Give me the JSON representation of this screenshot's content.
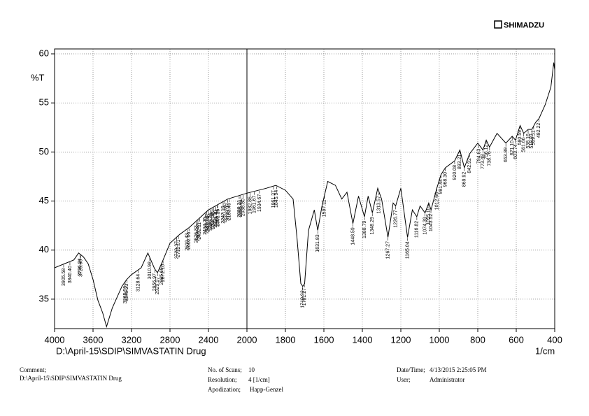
{
  "chart_data": {
    "type": "line",
    "brand": "SHIMADZU",
    "ylabel": "%T",
    "xlabel": "1/cm",
    "sample_path": "D:\\April-15\\SDIP\\SIMVASTATIN Drug",
    "xlim": [
      4000,
      400
    ],
    "x_scale_break": 2000,
    "xticks": [
      4000,
      3600,
      3200,
      2800,
      2400,
      2000,
      1800,
      1600,
      1400,
      1200,
      1000,
      800,
      600,
      400
    ],
    "ylim": [
      32,
      60.5
    ],
    "yticks": [
      35,
      40,
      45,
      50,
      55,
      60
    ],
    "grid": true,
    "color": "#000000",
    "x": [
      4000,
      3900,
      3800,
      3750,
      3700,
      3650,
      3600,
      3550,
      3500,
      3460,
      3400,
      3300,
      3250,
      3200,
      3100,
      3030,
      2960,
      2930,
      2880,
      2800,
      2700,
      2600,
      2400,
      2200,
      2000,
      1900,
      1850,
      1800,
      1760,
      1740,
      1720,
      1710,
      1700,
      1680,
      1650,
      1632,
      1610,
      1580,
      1540,
      1507,
      1480,
      1449,
      1420,
      1389,
      1370,
      1348,
      1320,
      1300,
      1267,
      1240,
      1227,
      1200,
      1165,
      1140,
      1117,
      1100,
      1074,
      1055,
      1043,
      1013,
      991,
      968,
      920,
      893,
      870,
      843,
      800,
      773,
      756,
      739,
      700,
      654,
      621,
      604,
      580,
      561,
      538,
      519,
      500,
      482,
      450,
      420,
      405,
      400
    ],
    "values": [
      38.2,
      38.6,
      39.0,
      39.7,
      39.3,
      38.6,
      37.0,
      34.9,
      33.6,
      32.2,
      34.1,
      36.3,
      37.0,
      37.5,
      38.2,
      39.7,
      38.1,
      37.7,
      38.8,
      40.7,
      41.6,
      42.3,
      44.1,
      45.2,
      45.8,
      46.3,
      46.6,
      46.1,
      45.2,
      41.3,
      36.6,
      36.3,
      36.6,
      42.0,
      44.1,
      42.0,
      44.5,
      47.0,
      46.6,
      45.2,
      45.9,
      42.7,
      45.5,
      43.4,
      45.5,
      43.8,
      46.3,
      45.2,
      41.3,
      44.8,
      44.5,
      46.3,
      41.3,
      44.1,
      43.4,
      44.5,
      43.8,
      44.8,
      44.1,
      46.3,
      47.7,
      48.4,
      49.1,
      50.2,
      48.4,
      49.8,
      50.9,
      50.2,
      51.2,
      50.5,
      51.9,
      50.9,
      51.6,
      51.2,
      52.7,
      51.9,
      52.3,
      52.3,
      53.0,
      53.4,
      54.8,
      56.6,
      59.1,
      58.4
    ],
    "peak_labels": [
      "3905.58",
      "3840.40",
      "3736.24",
      "3726.60",
      "3265.59",
      "3248.23",
      "3128.64",
      "3010.98",
      "2956.97",
      "2929.97",
      "2885.60",
      "2872.10",
      "2729.37",
      "2712.01",
      "2619.43",
      "2602.06",
      "2526.83",
      "2509.47",
      "2492.11",
      "2434.25",
      "2418.82",
      "2401.46",
      "2380.24",
      "2362.88",
      "2347.45",
      "2324.30",
      "2306.94",
      "2301.15",
      "2247.15",
      "2227.86",
      "2199.07",
      "2183.49",
      "2080.21",
      "2065.81",
      "2038.80",
      "1982.86",
      "1961.67",
      "1934.67",
      "1861.37",
      "1845.94",
      "1710.92",
      "1701.27",
      "1631.83",
      "1597.11",
      "1448.59",
      "1388.79",
      "1348.29",
      "1313.57",
      "1267.27",
      "1226.77",
      "1165.04",
      "1116.82",
      "1074.39",
      "1055.10",
      "1043.52",
      "1012.66",
      "991.44",
      "968.30",
      "920.08",
      "893.21",
      "869.92",
      "842.92",
      "794.63",
      "773.48",
      "756.12",
      "738.76",
      "653.89",
      "621.10",
      "603.74",
      "580.59",
      "561.66",
      "538.16",
      "518.87",
      "509.51",
      "482.22"
    ]
  },
  "footer": {
    "comment_label": "Comment;",
    "comment": "D:\\April-15\\SDIP\\SIMVASTATIN Drug",
    "scans_label": "No. of Scans;",
    "scans": "10",
    "resolution_label": "Resolution;",
    "resolution": "4 [1/cm]",
    "apodization_label": "Apodization;",
    "apodization": "Happ-Genzel",
    "datetime_label": "Date/Time;",
    "datetime": "4/13/2015 2:25:05 PM",
    "user_label": "User;",
    "user": "Administrator"
  }
}
